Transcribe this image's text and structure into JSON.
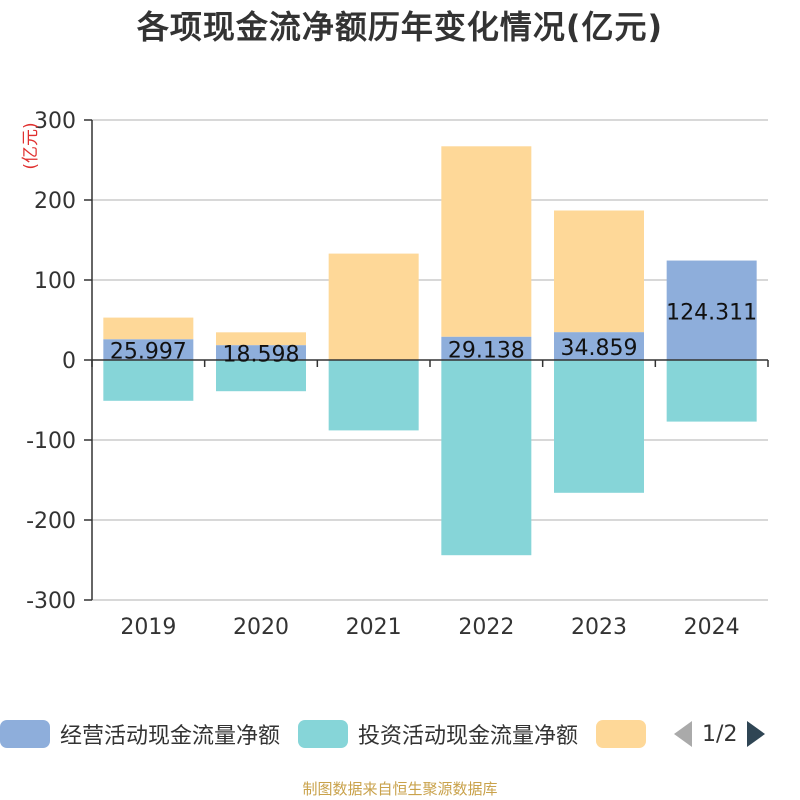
{
  "title": "各项现金流净额历年变化情况(亿元)",
  "source_note": "制图数据来自恒生聚源数据库",
  "colors": {
    "operating": "#8eaedb",
    "investing": "#86d5d8",
    "financing": "#fed898",
    "axis_label_unit": "#e0302f",
    "grid": "#cccccc",
    "axis": "#333333",
    "source_note": "#c9a24b"
  },
  "legend": {
    "items": [
      {
        "label": "经营活动现金流量净额",
        "color": "#8eaedb"
      },
      {
        "label": "投资活动现金流量净额",
        "color": "#86d5d8"
      },
      {
        "label": "",
        "color": "#fed898"
      }
    ],
    "pager_text": "1/2"
  },
  "chart_data": {
    "type": "bar",
    "stacked": true,
    "title": "各项现金流净额历年变化情况(亿元)",
    "ylabel": "(亿元)",
    "xlabel": "",
    "ylim": [
      -300,
      300
    ],
    "yticks": [
      300,
      200,
      100,
      0,
      -100,
      -200,
      -300
    ],
    "grid": true,
    "legend_position": "bottom",
    "categories": [
      "2019",
      "2020",
      "2021",
      "2022",
      "2023",
      "2024"
    ],
    "series": [
      {
        "name": "经营活动现金流量净额",
        "color": "#8eaedb",
        "values": [
          25.997,
          18.598,
          0,
          29.138,
          34.859,
          124.311
        ],
        "labels": [
          "25.997",
          "18.598",
          "",
          "29.138",
          "34.859",
          "124.311"
        ]
      },
      {
        "name": "投资活动现金流量净额",
        "color": "#86d5d8",
        "values": [
          -51,
          -39,
          -88,
          -244,
          -166,
          -77
        ]
      },
      {
        "color": "#fed898",
        "values": [
          27,
          16,
          133,
          238,
          152,
          0
        ]
      }
    ]
  }
}
